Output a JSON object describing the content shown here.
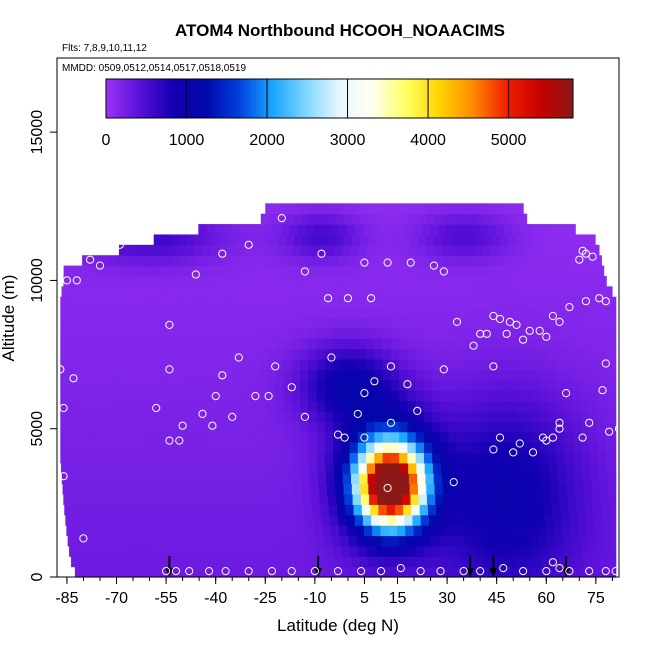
{
  "chart_data": {
    "type": "heatmap",
    "title": "ATOM4 Northbound HCOOH_NOAACIMS",
    "flights_label": "Flts: 7,8,9,10,11,12",
    "dates_label": "MMDD: 0509,0512,0514,0517,0518,0519",
    "xlabel": "Latitude (deg N)",
    "ylabel": "Altitude (m)",
    "xlim": [
      -88,
      82
    ],
    "ylim": [
      0,
      17500
    ],
    "x_ticks": [
      -85,
      -70,
      -55,
      -40,
      -25,
      -10,
      5,
      15,
      30,
      45,
      60,
      75
    ],
    "y_ticks": [
      0,
      5000,
      10000,
      15000
    ],
    "colorbar": {
      "range": [
        0,
        5800
      ],
      "ticks": [
        0,
        1000,
        2000,
        3000,
        4000,
        5000
      ],
      "colors": [
        "#9c34f6",
        "#5a10d8",
        "#1200b2",
        "#0008a8",
        "#0040e0",
        "#1aa6ff",
        "#7fd6ff",
        "#e8f8ff",
        "#fffff0",
        "#ffff60",
        "#ffd400",
        "#ff8a00",
        "#f02000",
        "#c80000",
        "#8c1818"
      ]
    },
    "background_value": 300,
    "background_slope": -18,
    "coverage_rows": [
      {
        "y": 0,
        "x0": -82,
        "x1": 81
      },
      {
        "y": 600,
        "x0": -84,
        "x1": 81
      },
      {
        "y": 1400,
        "x0": -85,
        "x1": 81
      },
      {
        "y": 2500,
        "x0": -86,
        "x1": 81
      },
      {
        "y": 4000,
        "x0": -87,
        "x1": 81
      },
      {
        "y": 7500,
        "x0": -87,
        "x1": 81
      },
      {
        "y": 9400,
        "x0": -87,
        "x1": 81
      },
      {
        "y": 10000,
        "x0": -86,
        "x1": 78
      },
      {
        "y": 10500,
        "x0": -86,
        "x1": 77
      },
      {
        "y": 11000,
        "x0": -70,
        "x1": 76
      },
      {
        "y": 11600,
        "x0": -52,
        "x1": 74
      },
      {
        "y": 12100,
        "x0": -25,
        "x1": 53
      },
      {
        "y": 12500,
        "x0": -25,
        "x1": 53
      }
    ],
    "features": [
      {
        "x": 13,
        "y": 3100,
        "sx": 9,
        "sy": 1200,
        "value": 5600
      },
      {
        "x": 12,
        "y": 3400,
        "sx": 14,
        "sy": 2100,
        "value": 1700
      },
      {
        "x": 48,
        "y": 2800,
        "sx": 22,
        "sy": 3200,
        "value": 750
      },
      {
        "x": 0,
        "y": 6500,
        "sx": 14,
        "sy": 1300,
        "value": 800
      },
      {
        "x": -60,
        "y": 11500,
        "sx": 22,
        "sy": 900,
        "value": 500
      },
      {
        "x": -8,
        "y": 11500,
        "sx": 12,
        "sy": 800,
        "value": 450
      },
      {
        "x": 35,
        "y": 11500,
        "sx": 14,
        "sy": 800,
        "value": 400
      }
    ],
    "samples": [
      {
        "x": -85,
        "y": 10000
      },
      {
        "x": -82,
        "y": 10000
      },
      {
        "x": -78,
        "y": 10700
      },
      {
        "x": -75,
        "y": 10500
      },
      {
        "x": -72,
        "y": 11100
      },
      {
        "x": -69,
        "y": 11200
      },
      {
        "x": -46,
        "y": 10200
      },
      {
        "x": -38,
        "y": 10900
      },
      {
        "x": -30,
        "y": 11200
      },
      {
        "x": -20,
        "y": 12100
      },
      {
        "x": -13,
        "y": 10300
      },
      {
        "x": -8,
        "y": 10900
      },
      {
        "x": -6,
        "y": 9400
      },
      {
        "x": 0,
        "y": 9400
      },
      {
        "x": 5,
        "y": 10600
      },
      {
        "x": 7,
        "y": 9400
      },
      {
        "x": 12,
        "y": 10600
      },
      {
        "x": 19,
        "y": 10600
      },
      {
        "x": 26,
        "y": 10500
      },
      {
        "x": 29,
        "y": 10300
      },
      {
        "x": 33,
        "y": 8600
      },
      {
        "x": 38,
        "y": 7800
      },
      {
        "x": 40,
        "y": 8200
      },
      {
        "x": 42,
        "y": 8200
      },
      {
        "x": 44,
        "y": 8800
      },
      {
        "x": 46,
        "y": 8700
      },
      {
        "x": 48,
        "y": 8200
      },
      {
        "x": 49,
        "y": 8600
      },
      {
        "x": 51,
        "y": 8500
      },
      {
        "x": 53,
        "y": 8000
      },
      {
        "x": 55,
        "y": 8300
      },
      {
        "x": 58,
        "y": 8300
      },
      {
        "x": 60,
        "y": 8100
      },
      {
        "x": 62,
        "y": 8800
      },
      {
        "x": 64,
        "y": 8600
      },
      {
        "x": 67,
        "y": 9100
      },
      {
        "x": 72,
        "y": 9300
      },
      {
        "x": 76,
        "y": 9400
      },
      {
        "x": 78,
        "y": 9300
      },
      {
        "x": 70,
        "y": 10700
      },
      {
        "x": 72,
        "y": 10900
      },
      {
        "x": 74,
        "y": 10800
      },
      {
        "x": 71,
        "y": 11000
      },
      {
        "x": -54,
        "y": 8500
      },
      {
        "x": -54,
        "y": 7000
      },
      {
        "x": -38,
        "y": 6800
      },
      {
        "x": -33,
        "y": 7400
      },
      {
        "x": -22,
        "y": 7100
      },
      {
        "x": -17,
        "y": 6400
      },
      {
        "x": -5,
        "y": 7400
      },
      {
        "x": 13,
        "y": 7100
      },
      {
        "x": 29,
        "y": 7000
      },
      {
        "x": 44,
        "y": 7100
      },
      {
        "x": -83,
        "y": 6700
      },
      {
        "x": -86,
        "y": 5700
      },
      {
        "x": -58,
        "y": 5700
      },
      {
        "x": -50,
        "y": 5100
      },
      {
        "x": -44,
        "y": 5500
      },
      {
        "x": -40,
        "y": 6100
      },
      {
        "x": -41,
        "y": 5100
      },
      {
        "x": -35,
        "y": 5400
      },
      {
        "x": -28,
        "y": 6100
      },
      {
        "x": -24,
        "y": 6100
      },
      {
        "x": -13,
        "y": 5400
      },
      {
        "x": -3,
        "y": 4800
      },
      {
        "x": -1,
        "y": 4700
      },
      {
        "x": 5,
        "y": 4700
      },
      {
        "x": 5,
        "y": 6200
      },
      {
        "x": 8,
        "y": 6600
      },
      {
        "x": 13,
        "y": 5200
      },
      {
        "x": 18,
        "y": 6500
      },
      {
        "x": 21,
        "y": 5600
      },
      {
        "x": 3,
        "y": 5500
      },
      {
        "x": 46,
        "y": 4700
      },
      {
        "x": 44,
        "y": 4300
      },
      {
        "x": 50,
        "y": 4200
      },
      {
        "x": 52,
        "y": 4500
      },
      {
        "x": 56,
        "y": 4200
      },
      {
        "x": 59,
        "y": 4700
      },
      {
        "x": 60,
        "y": 4600
      },
      {
        "x": 62,
        "y": 4700
      },
      {
        "x": 64,
        "y": 5200
      },
      {
        "x": 64,
        "y": 5000
      },
      {
        "x": 66,
        "y": 6200
      },
      {
        "x": 71,
        "y": 4700
      },
      {
        "x": 73,
        "y": 5200
      },
      {
        "x": 77,
        "y": 6300
      },
      {
        "x": 78,
        "y": 7200
      },
      {
        "x": 79,
        "y": 4900
      },
      {
        "x": 82,
        "y": 5000
      },
      {
        "x": -54,
        "y": 4600
      },
      {
        "x": -51,
        "y": 4600
      },
      {
        "x": -87,
        "y": 7000
      },
      {
        "x": -86,
        "y": 3400
      },
      {
        "x": -80,
        "y": 1300
      },
      {
        "x": 32,
        "y": 3200
      },
      {
        "x": 12,
        "y": 3000
      },
      {
        "x": -55,
        "y": 200
      },
      {
        "x": -52,
        "y": 200
      },
      {
        "x": -48,
        "y": 200
      },
      {
        "x": -42,
        "y": 200
      },
      {
        "x": -37,
        "y": 200
      },
      {
        "x": -30,
        "y": 200
      },
      {
        "x": -23,
        "y": 200
      },
      {
        "x": -17,
        "y": 200
      },
      {
        "x": -10,
        "y": 200
      },
      {
        "x": -3,
        "y": 200
      },
      {
        "x": 4,
        "y": 200
      },
      {
        "x": 10,
        "y": 200
      },
      {
        "x": 16,
        "y": 300
      },
      {
        "x": 22,
        "y": 200
      },
      {
        "x": 28,
        "y": 200
      },
      {
        "x": 35,
        "y": 200
      },
      {
        "x": 40,
        "y": 200
      },
      {
        "x": 47,
        "y": 300
      },
      {
        "x": 53,
        "y": 200
      },
      {
        "x": 60,
        "y": 200
      },
      {
        "x": 62,
        "y": 500
      },
      {
        "x": 64,
        "y": 300
      },
      {
        "x": 67,
        "y": 200
      },
      {
        "x": 73,
        "y": 200
      },
      {
        "x": 78,
        "y": 200
      },
      {
        "x": 81,
        "y": 200
      }
    ],
    "arrows_x": [
      -54,
      -9,
      37,
      44,
      66
    ]
  }
}
